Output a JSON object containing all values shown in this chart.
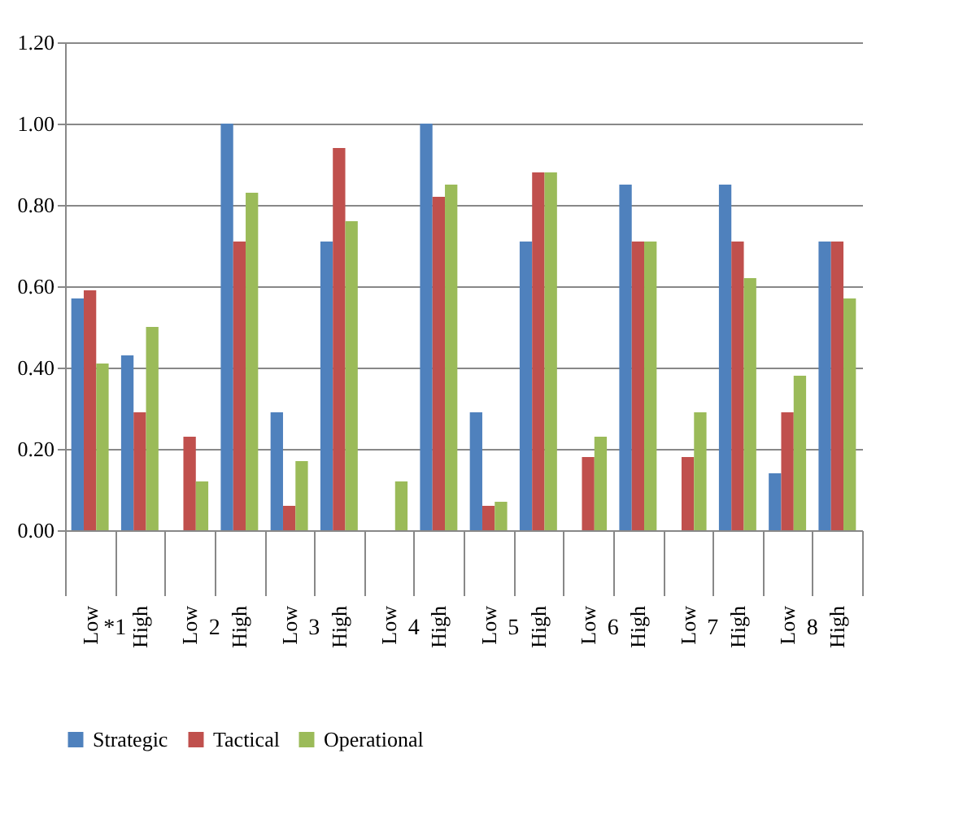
{
  "chart_data": {
    "type": "bar",
    "categories": [
      "Low",
      "High",
      "Low",
      "High",
      "Low",
      "High",
      "Low",
      "High",
      "Low",
      "High",
      "Low",
      "High",
      "Low",
      "High",
      "Low",
      "High"
    ],
    "series": [
      {
        "name": "Strategic",
        "color": "#4f81bd",
        "values": [
          0.57,
          0.43,
          0,
          1.0,
          0.29,
          0.71,
          0,
          1.0,
          0.29,
          0.71,
          0,
          0.85,
          0,
          0.85,
          0.14,
          0.71
        ]
      },
      {
        "name": "Tactical",
        "color": "#c0504d",
        "values": [
          0.59,
          0.29,
          0.23,
          0.71,
          0.06,
          0.94,
          0,
          0.82,
          0.06,
          0.88,
          0.18,
          0.71,
          0.18,
          0.71,
          0.29,
          0.71
        ]
      },
      {
        "name": "Operational",
        "color": "#9bbb59",
        "values": [
          0.41,
          0.5,
          0.12,
          0.83,
          0.17,
          0.76,
          0.12,
          0.85,
          0.07,
          0.88,
          0.23,
          0.71,
          0.29,
          0.62,
          0.38,
          0.57
        ]
      }
    ],
    "annotations": [
      "*1",
      "2",
      "3",
      "4",
      "5",
      "6",
      "7",
      "8"
    ],
    "ylim": [
      0,
      1.2
    ],
    "yticks": [
      {
        "value": 0,
        "label": "0.00"
      },
      {
        "value": 0.2,
        "label": "0.20"
      },
      {
        "value": 0.4,
        "label": "0.40"
      },
      {
        "value": 0.6,
        "label": "0.60"
      },
      {
        "value": 0.8,
        "label": "0.80"
      },
      {
        "value": 1.0,
        "label": "1.00"
      },
      {
        "value": 1.2,
        "label": "1.20"
      }
    ],
    "grid": "y",
    "legend": "bottom"
  }
}
